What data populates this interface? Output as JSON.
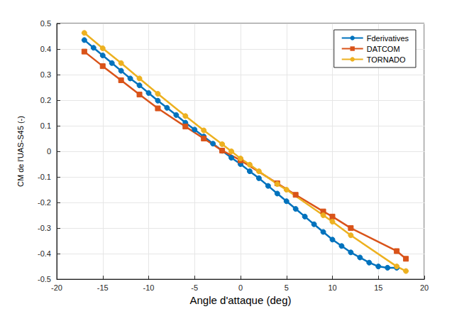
{
  "chart_data": {
    "type": "line",
    "x_label": "Angle d'attaque (deg)",
    "y_label": "CM de l'UAS-S45 (-)",
    "xlim": [
      -20,
      20
    ],
    "xticks": [
      -20,
      -15,
      -10,
      -5,
      0,
      5,
      10,
      15,
      20
    ],
    "ylim": [
      -0.5,
      0.5
    ],
    "yticks": [
      -0.5,
      -0.4,
      -0.3,
      -0.2,
      -0.1,
      0,
      0.1,
      0.2,
      0.3,
      0.4,
      0.5
    ],
    "grid": true,
    "legend": "top-right",
    "series": [
      {
        "name": "Fderivatives",
        "color": "#0072bd",
        "marker": "circle",
        "line_style": "solid",
        "x": [
          -17,
          -16,
          -15,
          -14,
          -13,
          -12,
          -11,
          -10,
          -9,
          -8,
          -7,
          -6,
          -5,
          -4,
          -3,
          -2,
          -1,
          0,
          1,
          2,
          3,
          4,
          5,
          6,
          7,
          8,
          9,
          10,
          11,
          12,
          13,
          14,
          15,
          16,
          17
        ],
        "values": [
          0.435,
          0.405,
          0.375,
          0.345,
          0.315,
          0.285,
          0.258,
          0.228,
          0.198,
          0.17,
          0.142,
          0.112,
          0.085,
          0.058,
          0.03,
          0.002,
          -0.025,
          -0.05,
          -0.078,
          -0.105,
          -0.135,
          -0.165,
          -0.195,
          -0.225,
          -0.255,
          -0.285,
          -0.315,
          -0.345,
          -0.37,
          -0.395,
          -0.415,
          -0.435,
          -0.45,
          -0.455,
          -0.455
        ]
      },
      {
        "name": "DATCOM",
        "color": "#d95319",
        "marker": "square",
        "line_style": "solid",
        "x": [
          -17,
          -15,
          -13,
          -11,
          -9,
          -6,
          -4,
          -2,
          0,
          4,
          6,
          9,
          10,
          12,
          17,
          18
        ],
        "values": [
          0.39,
          0.333,
          0.278,
          0.222,
          0.168,
          0.097,
          0.05,
          0.003,
          -0.035,
          -0.125,
          -0.17,
          -0.235,
          -0.255,
          -0.3,
          -0.39,
          -0.42
        ]
      },
      {
        "name": "TORNADO",
        "color": "#edb120",
        "marker": "circle",
        "line_style": "solid",
        "x": [
          -17,
          -15,
          -13,
          -11,
          -9,
          -6,
          -4,
          -2,
          -1,
          0,
          1,
          2,
          4,
          5,
          9,
          10,
          12,
          17,
          18
        ],
        "values": [
          0.463,
          0.403,
          0.345,
          0.285,
          0.225,
          0.138,
          0.082,
          0.028,
          0.0,
          -0.028,
          -0.052,
          -0.078,
          -0.128,
          -0.15,
          -0.25,
          -0.275,
          -0.328,
          -0.45,
          -0.468
        ]
      }
    ]
  }
}
